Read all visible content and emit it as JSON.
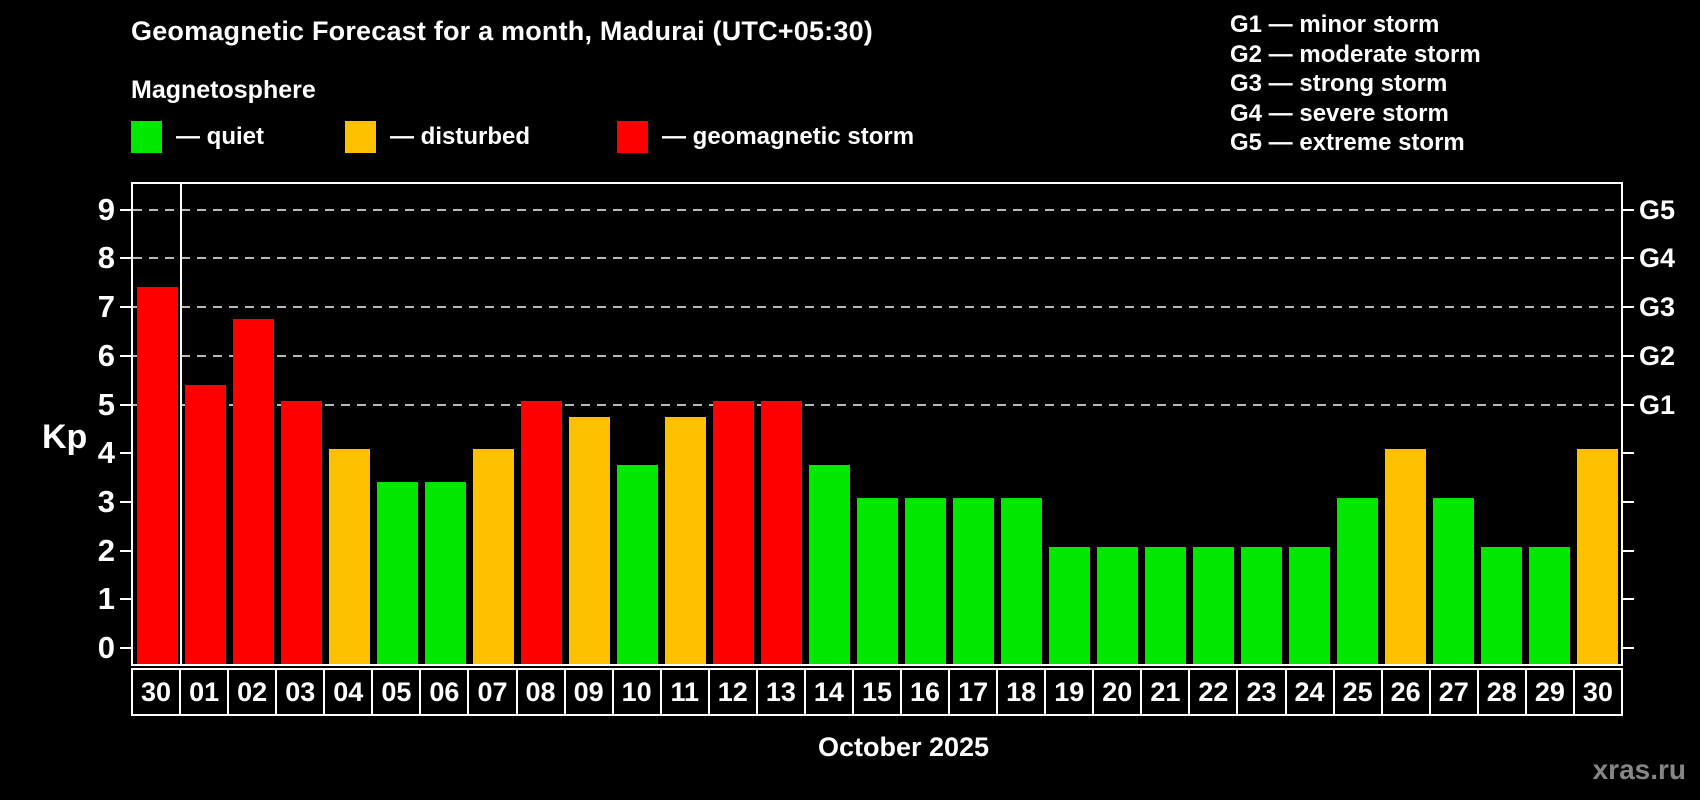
{
  "header": {
    "title": "Geomagnetic Forecast for a month, Madurai (UTC+05:30)",
    "subtitle": "Magnetosphere"
  },
  "legend": {
    "items": [
      {
        "status": "quiet",
        "label": "— quiet",
        "color": "#00e800"
      },
      {
        "status": "disturbed",
        "label": "— disturbed",
        "color": "#ffc000"
      },
      {
        "status": "storm",
        "label": "— geomagnetic storm",
        "color": "#ff0000"
      }
    ]
  },
  "storm_scale_legend": {
    "lines": [
      "G1 — minor storm",
      "G2 — moderate storm",
      "G3 — strong storm",
      "G4 — severe storm",
      "G5 — extreme storm"
    ]
  },
  "chart_data": {
    "type": "bar",
    "title": "Geomagnetic Forecast for a month, Madurai (UTC+05:30)",
    "ylabel": "Kp",
    "xlabel": "October 2025",
    "ylim": [
      0,
      9
    ],
    "y_ticks": [
      0,
      1,
      2,
      3,
      4,
      5,
      6,
      7,
      8,
      9
    ],
    "grid_kp_levels": [
      5,
      6,
      7,
      8,
      9
    ],
    "right_axis_ticks": [
      {
        "kp": 5,
        "label": "G1"
      },
      {
        "kp": 6,
        "label": "G2"
      },
      {
        "kp": 7,
        "label": "G3"
      },
      {
        "kp": 8,
        "label": "G4"
      },
      {
        "kp": 9,
        "label": "G5"
      }
    ],
    "legend_position": "top",
    "grid": "dashed, storm levels only",
    "month_separator_after_index": 0,
    "categories": [
      "30",
      "01",
      "02",
      "03",
      "04",
      "05",
      "06",
      "07",
      "08",
      "09",
      "10",
      "11",
      "12",
      "13",
      "14",
      "15",
      "16",
      "17",
      "18",
      "19",
      "20",
      "21",
      "22",
      "23",
      "24",
      "25",
      "26",
      "27",
      "28",
      "29",
      "30"
    ],
    "values": [
      7.33,
      5.33,
      6.67,
      5.0,
      4.0,
      3.33,
      3.33,
      4.0,
      5.0,
      4.67,
      3.67,
      4.67,
      5.0,
      5.0,
      3.67,
      3.0,
      3.0,
      3.0,
      3.0,
      2.0,
      2.0,
      2.0,
      2.0,
      2.0,
      2.0,
      3.0,
      4.0,
      3.0,
      2.0,
      2.0,
      4.0
    ],
    "statuses": [
      "storm",
      "storm",
      "storm",
      "storm",
      "disturbed",
      "quiet",
      "quiet",
      "disturbed",
      "storm",
      "disturbed",
      "quiet",
      "disturbed",
      "storm",
      "storm",
      "quiet",
      "quiet",
      "quiet",
      "quiet",
      "quiet",
      "quiet",
      "quiet",
      "quiet",
      "quiet",
      "quiet",
      "quiet",
      "quiet",
      "disturbed",
      "quiet",
      "quiet",
      "quiet",
      "disturbed"
    ]
  },
  "footer": {
    "month_label": "October 2025",
    "watermark": "xras.ru"
  }
}
